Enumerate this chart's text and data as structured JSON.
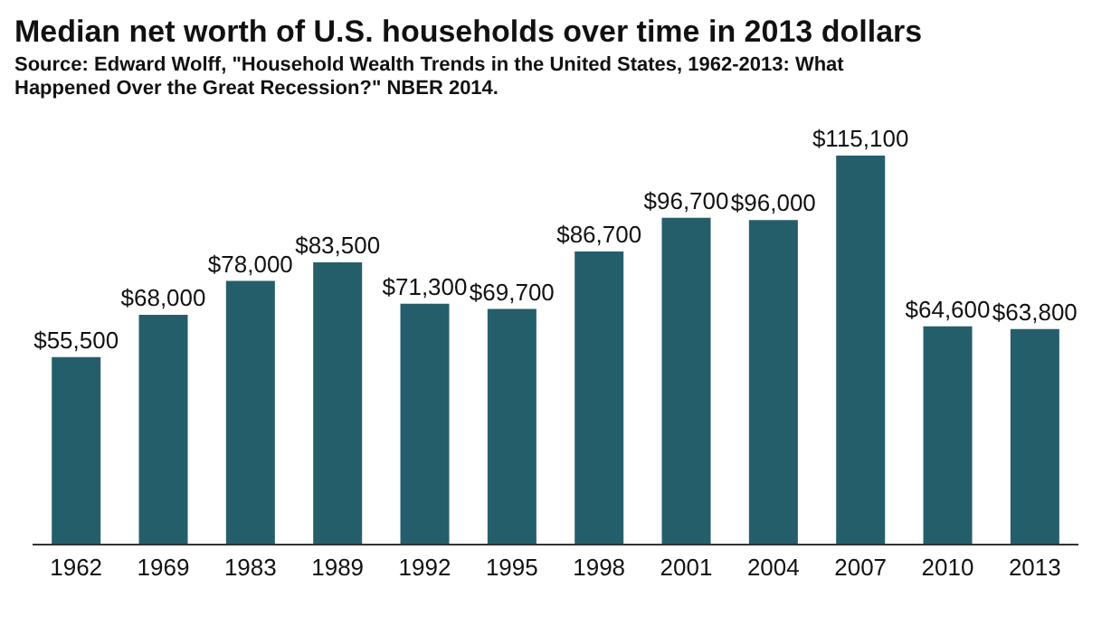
{
  "chart_data": {
    "type": "bar",
    "title": "Median net worth of U.S. households over time in 2013 dollars",
    "annotations": [
      "Source: Edward Wolff, \"Household Wealth Trends in the United States, 1962-2013: What Happened Over the Great Recession?\" NBER 2014."
    ],
    "categories": [
      "1962",
      "1969",
      "1983",
      "1989",
      "1992",
      "1995",
      "1998",
      "2001",
      "2004",
      "2007",
      "2010",
      "2013"
    ],
    "values": [
      55500,
      68000,
      78000,
      83500,
      71300,
      69700,
      86700,
      96700,
      96000,
      115100,
      64600,
      63800
    ],
    "value_labels": [
      "$55,500",
      "$68,000",
      "$78,000",
      "$83,500",
      "$71,300",
      "$69,700",
      "$86,700",
      "$96,700",
      "$96,000",
      "$115,100",
      "$64,600",
      "$63,800"
    ],
    "color": "#255e6b"
  }
}
